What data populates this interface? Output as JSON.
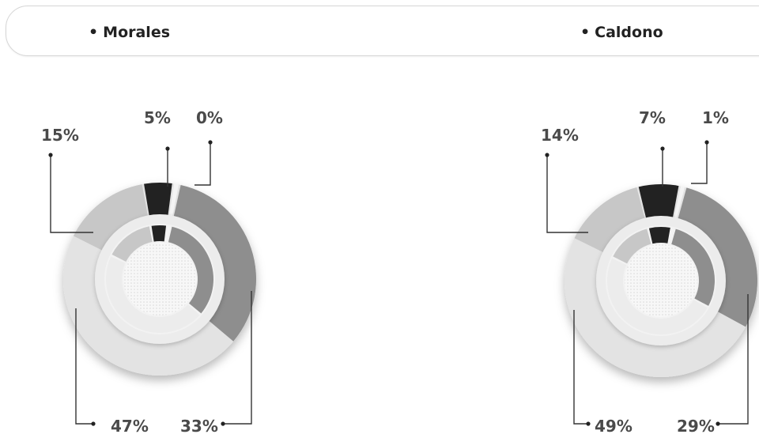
{
  "header": {
    "bullet": "•",
    "left_region": "Morales",
    "right_region": "Caldono"
  },
  "colors": {
    "black": "#222222",
    "light_gray": "#e3e3e3",
    "medium_gray": "#c7c7c7",
    "dark_gray": "#8e8e8e",
    "white_sliver": "#f4f4f4",
    "text": "#4a4a4a"
  },
  "chart_data": [
    {
      "type": "pie",
      "title": "Morales",
      "slices": [
        {
          "key": "black",
          "value": 5,
          "label": "5%"
        },
        {
          "key": "white",
          "value": 0,
          "label": "0%"
        },
        {
          "key": "dark",
          "value": 33,
          "label": "33%"
        },
        {
          "key": "light",
          "value": 47,
          "label": "47%"
        },
        {
          "key": "medium",
          "value": 15,
          "label": "15%"
        }
      ]
    },
    {
      "type": "pie",
      "title": "Caldono",
      "slices": [
        {
          "key": "black",
          "value": 7,
          "label": "7%"
        },
        {
          "key": "white",
          "value": 1,
          "label": "1%"
        },
        {
          "key": "dark",
          "value": 29,
          "label": "29%"
        },
        {
          "key": "light",
          "value": 49,
          "label": "49%"
        },
        {
          "key": "medium",
          "value": 14,
          "label": "14%"
        }
      ]
    }
  ]
}
